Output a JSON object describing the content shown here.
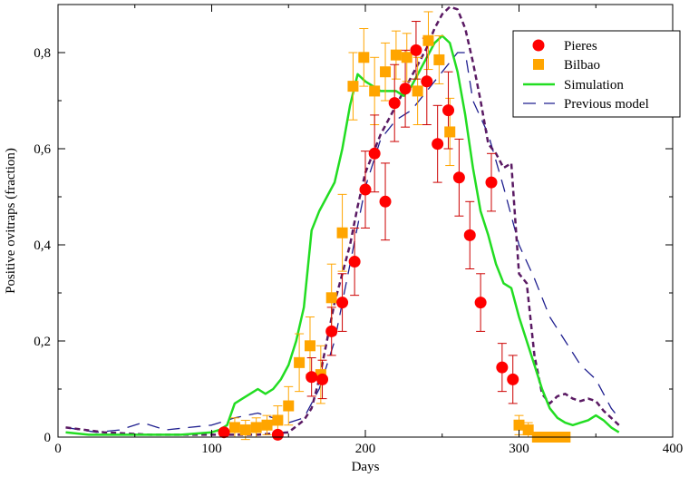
{
  "chart_data": {
    "type": "scatter",
    "title": "",
    "xlabel": "Days",
    "ylabel": "Positive ovitraps (fraction)",
    "xlim": [
      0,
      400
    ],
    "ylim": [
      0,
      0.9
    ],
    "x_ticks": [
      0,
      100,
      200,
      300,
      400
    ],
    "y_ticks": [
      0,
      0.2,
      0.4,
      0.6,
      0.8
    ],
    "x_tick_labels": [
      "0",
      "100",
      "200",
      "300",
      "400"
    ],
    "y_tick_labels": [
      "0",
      "0,2",
      "0,4",
      "0,6",
      "0,8"
    ],
    "grid": false,
    "legend_position": "top-right",
    "legend": [
      "Pieres",
      "Bilbao",
      "Simulation",
      "Previous model"
    ],
    "series": [
      {
        "name": "Pieres",
        "kind": "circle-markers-with-error-bars",
        "color": "#ff0000",
        "error_bar_color": "#cc0000",
        "x": [
          108,
          143,
          165,
          172,
          178,
          185,
          193,
          200,
          206,
          213,
          219,
          226,
          233,
          240,
          247,
          254,
          261,
          268,
          275,
          282,
          289,
          296
        ],
        "y": [
          0.01,
          0.005,
          0.125,
          0.12,
          0.22,
          0.28,
          0.365,
          0.515,
          0.59,
          0.49,
          0.695,
          0.725,
          0.805,
          0.74,
          0.61,
          0.68,
          0.54,
          0.42,
          0.28,
          0.53,
          0.145,
          0.12
        ],
        "err": [
          0.005,
          0.005,
          0.04,
          0.04,
          0.05,
          0.06,
          0.07,
          0.08,
          0.08,
          0.08,
          0.08,
          0.08,
          0.06,
          0.09,
          0.08,
          0.08,
          0.08,
          0.07,
          0.06,
          0.06,
          0.05,
          0.05
        ]
      },
      {
        "name": "Bilbao",
        "kind": "square-markers-with-error-bars",
        "color": "#ffa500",
        "error_bar_color": "#ffa500",
        "x": [
          115,
          122,
          129,
          136,
          143,
          150,
          157,
          164,
          171,
          178,
          185,
          192,
          199,
          206,
          213,
          220,
          227,
          234,
          241,
          248,
          255,
          300,
          306,
          312,
          318,
          324,
          330
        ],
        "y": [
          0.02,
          0.015,
          0.02,
          0.025,
          0.035,
          0.065,
          0.155,
          0.19,
          0.13,
          0.29,
          0.425,
          0.73,
          0.79,
          0.72,
          0.76,
          0.795,
          0.79,
          0.72,
          0.825,
          0.785,
          0.635,
          0.025,
          0.015,
          0.0,
          0.0,
          0.0,
          0.0
        ],
        "err": [
          0.02,
          0.02,
          0.02,
          0.02,
          0.03,
          0.04,
          0.06,
          0.06,
          0.06,
          0.07,
          0.08,
          0.07,
          0.06,
          0.07,
          0.06,
          0.05,
          0.05,
          0.07,
          0.06,
          0.05,
          0.07,
          0.02,
          0.015,
          0.01,
          0.01,
          0.01,
          0.01
        ]
      },
      {
        "name": "Simulation",
        "kind": "solid-line",
        "color": "#22dd22",
        "x": [
          5,
          20,
          50,
          80,
          100,
          105,
          110,
          115,
          120,
          125,
          130,
          135,
          140,
          145,
          150,
          155,
          160,
          165,
          170,
          175,
          180,
          185,
          190,
          195,
          200,
          205,
          210,
          215,
          220,
          225,
          230,
          235,
          240,
          245,
          250,
          255,
          260,
          265,
          270,
          275,
          280,
          285,
          290,
          295,
          300,
          305,
          310,
          315,
          320,
          325,
          330,
          335,
          340,
          345,
          350,
          355,
          360,
          365
        ],
        "y": [
          0.01,
          0.005,
          0.005,
          0.005,
          0.01,
          0.015,
          0.025,
          0.07,
          0.08,
          0.09,
          0.1,
          0.09,
          0.1,
          0.12,
          0.15,
          0.2,
          0.27,
          0.43,
          0.47,
          0.5,
          0.53,
          0.6,
          0.69,
          0.755,
          0.74,
          0.73,
          0.72,
          0.72,
          0.72,
          0.71,
          0.73,
          0.76,
          0.79,
          0.82,
          0.835,
          0.82,
          0.76,
          0.67,
          0.56,
          0.47,
          0.42,
          0.36,
          0.32,
          0.31,
          0.25,
          0.2,
          0.15,
          0.1,
          0.06,
          0.04,
          0.03,
          0.025,
          0.03,
          0.035,
          0.045,
          0.035,
          0.02,
          0.01
        ]
      },
      {
        "name": "Previous model",
        "kind": "long-dash-line",
        "color": "#1f1f8f",
        "x": [
          5,
          25,
          40,
          55,
          70,
          85,
          100,
          115,
          130,
          140,
          150,
          160,
          170,
          180,
          190,
          200,
          210,
          220,
          230,
          240,
          250,
          260,
          265,
          270,
          280,
          290,
          300,
          310,
          320,
          330,
          340,
          350,
          360,
          365
        ],
        "y": [
          0.02,
          0.01,
          0.015,
          0.03,
          0.015,
          0.02,
          0.025,
          0.04,
          0.05,
          0.04,
          0.03,
          0.04,
          0.1,
          0.2,
          0.36,
          0.52,
          0.62,
          0.66,
          0.68,
          0.72,
          0.76,
          0.8,
          0.8,
          0.7,
          0.63,
          0.52,
          0.4,
          0.33,
          0.25,
          0.2,
          0.15,
          0.12,
          0.06,
          0.04
        ]
      },
      {
        "name": "",
        "kind": "short-dash-line",
        "color": "#5a1a63",
        "x": [
          5,
          30,
          60,
          90,
          110,
          130,
          150,
          160,
          165,
          170,
          180,
          190,
          195,
          200,
          210,
          220,
          230,
          240,
          245,
          250,
          255,
          260,
          265,
          270,
          275,
          280,
          285,
          290,
          295,
          300,
          305,
          310,
          315,
          320,
          325,
          330,
          335,
          340,
          345,
          350,
          355,
          360,
          365
        ],
        "y": [
          0.02,
          0.01,
          0.005,
          0.005,
          0.005,
          0.005,
          0.01,
          0.035,
          0.06,
          0.12,
          0.28,
          0.4,
          0.48,
          0.55,
          0.63,
          0.69,
          0.75,
          0.81,
          0.85,
          0.88,
          0.895,
          0.89,
          0.85,
          0.78,
          0.7,
          0.61,
          0.59,
          0.56,
          0.57,
          0.34,
          0.32,
          0.17,
          0.09,
          0.07,
          0.085,
          0.09,
          0.08,
          0.075,
          0.08,
          0.075,
          0.055,
          0.04,
          0.025
        ]
      }
    ],
    "colors": {
      "frame": "#000000",
      "background": "#ffffff"
    }
  }
}
